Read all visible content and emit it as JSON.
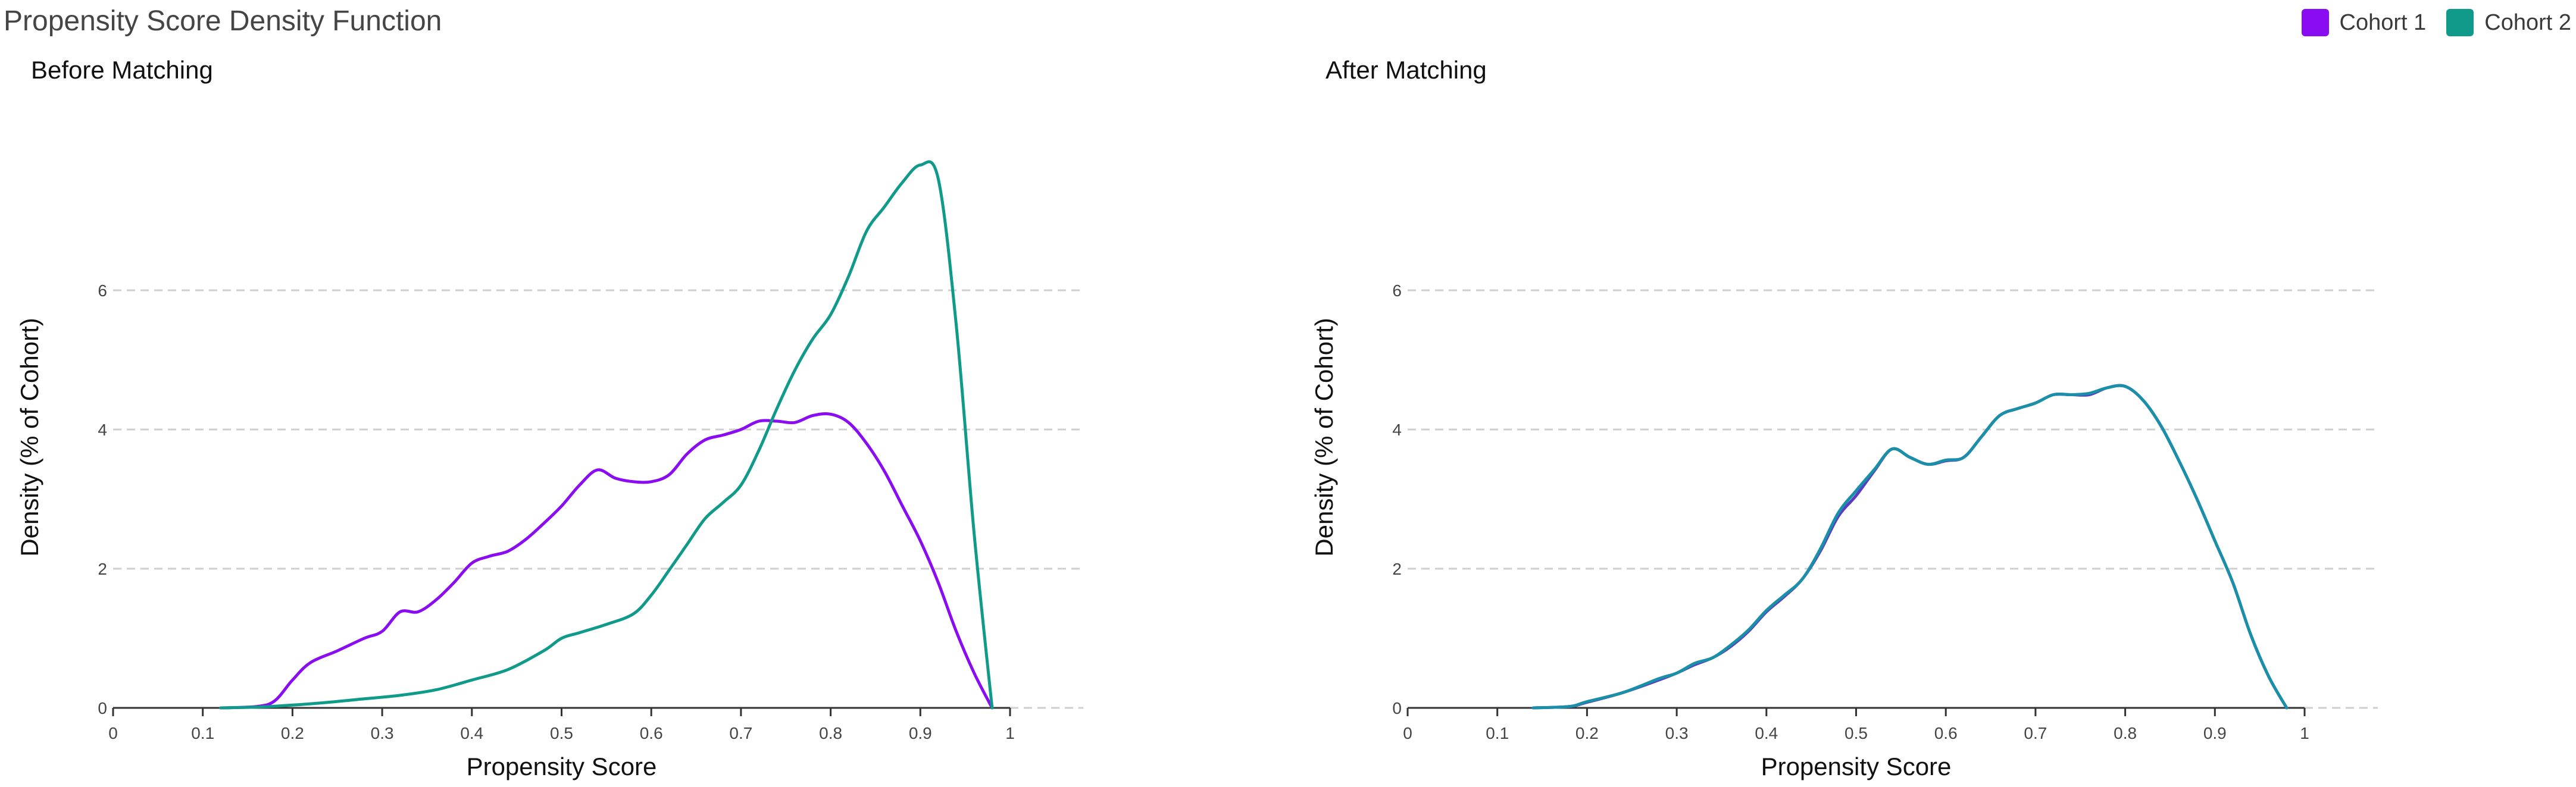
{
  "title": "Propensity Score Density Function",
  "legend": [
    {
      "label": "Cohort 1",
      "color": "#8a0df2"
    },
    {
      "label": "Cohort 2",
      "color": "#0f9a8a"
    }
  ],
  "chart_data": [
    {
      "type": "line",
      "title": "Before Matching",
      "xlabel": "Propensity Score",
      "ylabel": "Density (% of Cohort)",
      "xlim": [
        0,
        1
      ],
      "ylim": [
        0,
        8
      ],
      "xticks": [
        "0",
        "0.1",
        "0.2",
        "0.3",
        "0.4",
        "0.5",
        "0.6",
        "0.7",
        "0.8",
        "0.9",
        "1"
      ],
      "yticks": [
        "0",
        "2",
        "4",
        "6"
      ],
      "grid": true,
      "series": [
        {
          "name": "Cohort 1",
          "color": "#8a0df2",
          "points": [
            [
              0.12,
              0
            ],
            [
              0.16,
              0.02
            ],
            [
              0.18,
              0.1
            ],
            [
              0.2,
              0.4
            ],
            [
              0.22,
              0.65
            ],
            [
              0.25,
              0.82
            ],
            [
              0.28,
              1.0
            ],
            [
              0.3,
              1.1
            ],
            [
              0.32,
              1.38
            ],
            [
              0.34,
              1.38
            ],
            [
              0.36,
              1.55
            ],
            [
              0.38,
              1.8
            ],
            [
              0.4,
              2.08
            ],
            [
              0.42,
              2.18
            ],
            [
              0.44,
              2.25
            ],
            [
              0.46,
              2.42
            ],
            [
              0.48,
              2.65
            ],
            [
              0.5,
              2.9
            ],
            [
              0.52,
              3.2
            ],
            [
              0.54,
              3.42
            ],
            [
              0.56,
              3.3
            ],
            [
              0.58,
              3.25
            ],
            [
              0.6,
              3.25
            ],
            [
              0.62,
              3.35
            ],
            [
              0.64,
              3.65
            ],
            [
              0.66,
              3.85
            ],
            [
              0.68,
              3.92
            ],
            [
              0.7,
              4.0
            ],
            [
              0.72,
              4.12
            ],
            [
              0.74,
              4.12
            ],
            [
              0.76,
              4.1
            ],
            [
              0.78,
              4.2
            ],
            [
              0.8,
              4.22
            ],
            [
              0.82,
              4.1
            ],
            [
              0.84,
              3.8
            ],
            [
              0.86,
              3.4
            ],
            [
              0.88,
              2.9
            ],
            [
              0.9,
              2.4
            ],
            [
              0.92,
              1.8
            ],
            [
              0.94,
              1.1
            ],
            [
              0.96,
              0.5
            ],
            [
              0.98,
              0
            ]
          ]
        },
        {
          "name": "Cohort 2",
          "color": "#0f9a8a",
          "points": [
            [
              0.12,
              0
            ],
            [
              0.16,
              0.01
            ],
            [
              0.2,
              0.04
            ],
            [
              0.24,
              0.08
            ],
            [
              0.28,
              0.13
            ],
            [
              0.32,
              0.18
            ],
            [
              0.36,
              0.26
            ],
            [
              0.4,
              0.4
            ],
            [
              0.44,
              0.55
            ],
            [
              0.48,
              0.82
            ],
            [
              0.5,
              1.0
            ],
            [
              0.52,
              1.08
            ],
            [
              0.55,
              1.2
            ],
            [
              0.58,
              1.35
            ],
            [
              0.6,
              1.62
            ],
            [
              0.62,
              1.98
            ],
            [
              0.64,
              2.35
            ],
            [
              0.66,
              2.72
            ],
            [
              0.68,
              2.95
            ],
            [
              0.7,
              3.2
            ],
            [
              0.72,
              3.7
            ],
            [
              0.74,
              4.3
            ],
            [
              0.76,
              4.85
            ],
            [
              0.78,
              5.3
            ],
            [
              0.8,
              5.65
            ],
            [
              0.82,
              6.2
            ],
            [
              0.84,
              6.85
            ],
            [
              0.86,
              7.2
            ],
            [
              0.88,
              7.55
            ],
            [
              0.9,
              7.8
            ],
            [
              0.92,
              7.6
            ],
            [
              0.94,
              5.5
            ],
            [
              0.96,
              2.5
            ],
            [
              0.98,
              0
            ]
          ]
        }
      ]
    },
    {
      "type": "line",
      "title": "After Matching",
      "xlabel": "Propensity Score",
      "ylabel": "Density (% of Cohort)",
      "xlim": [
        0,
        1
      ],
      "ylim": [
        0,
        8
      ],
      "xticks": [
        "0",
        "0.1",
        "0.2",
        "0.3",
        "0.4",
        "0.5",
        "0.6",
        "0.7",
        "0.8",
        "0.9",
        "1"
      ],
      "yticks": [
        "0",
        "2",
        "4",
        "6"
      ],
      "grid": true,
      "series": [
        {
          "name": "Cohort 1",
          "color": "#5a3cc4",
          "points": [
            [
              0.14,
              0
            ],
            [
              0.18,
              0.02
            ],
            [
              0.2,
              0.08
            ],
            [
              0.24,
              0.22
            ],
            [
              0.28,
              0.4
            ],
            [
              0.3,
              0.5
            ],
            [
              0.32,
              0.62
            ],
            [
              0.34,
              0.72
            ],
            [
              0.36,
              0.88
            ],
            [
              0.38,
              1.1
            ],
            [
              0.4,
              1.38
            ],
            [
              0.42,
              1.6
            ],
            [
              0.44,
              1.85
            ],
            [
              0.46,
              2.25
            ],
            [
              0.48,
              2.75
            ],
            [
              0.5,
              3.05
            ],
            [
              0.52,
              3.4
            ],
            [
              0.54,
              3.72
            ],
            [
              0.56,
              3.6
            ],
            [
              0.58,
              3.5
            ],
            [
              0.6,
              3.55
            ],
            [
              0.62,
              3.6
            ],
            [
              0.64,
              3.9
            ],
            [
              0.66,
              4.2
            ],
            [
              0.68,
              4.3
            ],
            [
              0.7,
              4.38
            ],
            [
              0.72,
              4.5
            ],
            [
              0.74,
              4.5
            ],
            [
              0.76,
              4.5
            ],
            [
              0.78,
              4.6
            ],
            [
              0.8,
              4.62
            ],
            [
              0.82,
              4.42
            ],
            [
              0.84,
              4.05
            ],
            [
              0.86,
              3.55
            ],
            [
              0.88,
              3.0
            ],
            [
              0.9,
              2.4
            ],
            [
              0.92,
              1.8
            ],
            [
              0.94,
              1.05
            ],
            [
              0.96,
              0.45
            ],
            [
              0.98,
              0
            ]
          ]
        },
        {
          "name": "Cohort 2",
          "color": "#1a8fa8",
          "points": [
            [
              0.14,
              0
            ],
            [
              0.18,
              0.02
            ],
            [
              0.2,
              0.09
            ],
            [
              0.24,
              0.22
            ],
            [
              0.28,
              0.42
            ],
            [
              0.3,
              0.5
            ],
            [
              0.32,
              0.64
            ],
            [
              0.34,
              0.72
            ],
            [
              0.36,
              0.9
            ],
            [
              0.38,
              1.12
            ],
            [
              0.4,
              1.4
            ],
            [
              0.42,
              1.62
            ],
            [
              0.44,
              1.85
            ],
            [
              0.46,
              2.28
            ],
            [
              0.48,
              2.8
            ],
            [
              0.5,
              3.12
            ],
            [
              0.52,
              3.42
            ],
            [
              0.54,
              3.72
            ],
            [
              0.56,
              3.6
            ],
            [
              0.58,
              3.5
            ],
            [
              0.6,
              3.56
            ],
            [
              0.62,
              3.6
            ],
            [
              0.64,
              3.9
            ],
            [
              0.66,
              4.2
            ],
            [
              0.68,
              4.3
            ],
            [
              0.7,
              4.38
            ],
            [
              0.72,
              4.5
            ],
            [
              0.74,
              4.5
            ],
            [
              0.76,
              4.52
            ],
            [
              0.78,
              4.6
            ],
            [
              0.8,
              4.62
            ],
            [
              0.82,
              4.42
            ],
            [
              0.84,
              4.05
            ],
            [
              0.86,
              3.55
            ],
            [
              0.88,
              3.0
            ],
            [
              0.9,
              2.4
            ],
            [
              0.92,
              1.8
            ],
            [
              0.94,
              1.05
            ],
            [
              0.96,
              0.45
            ],
            [
              0.98,
              0
            ]
          ]
        }
      ]
    }
  ]
}
